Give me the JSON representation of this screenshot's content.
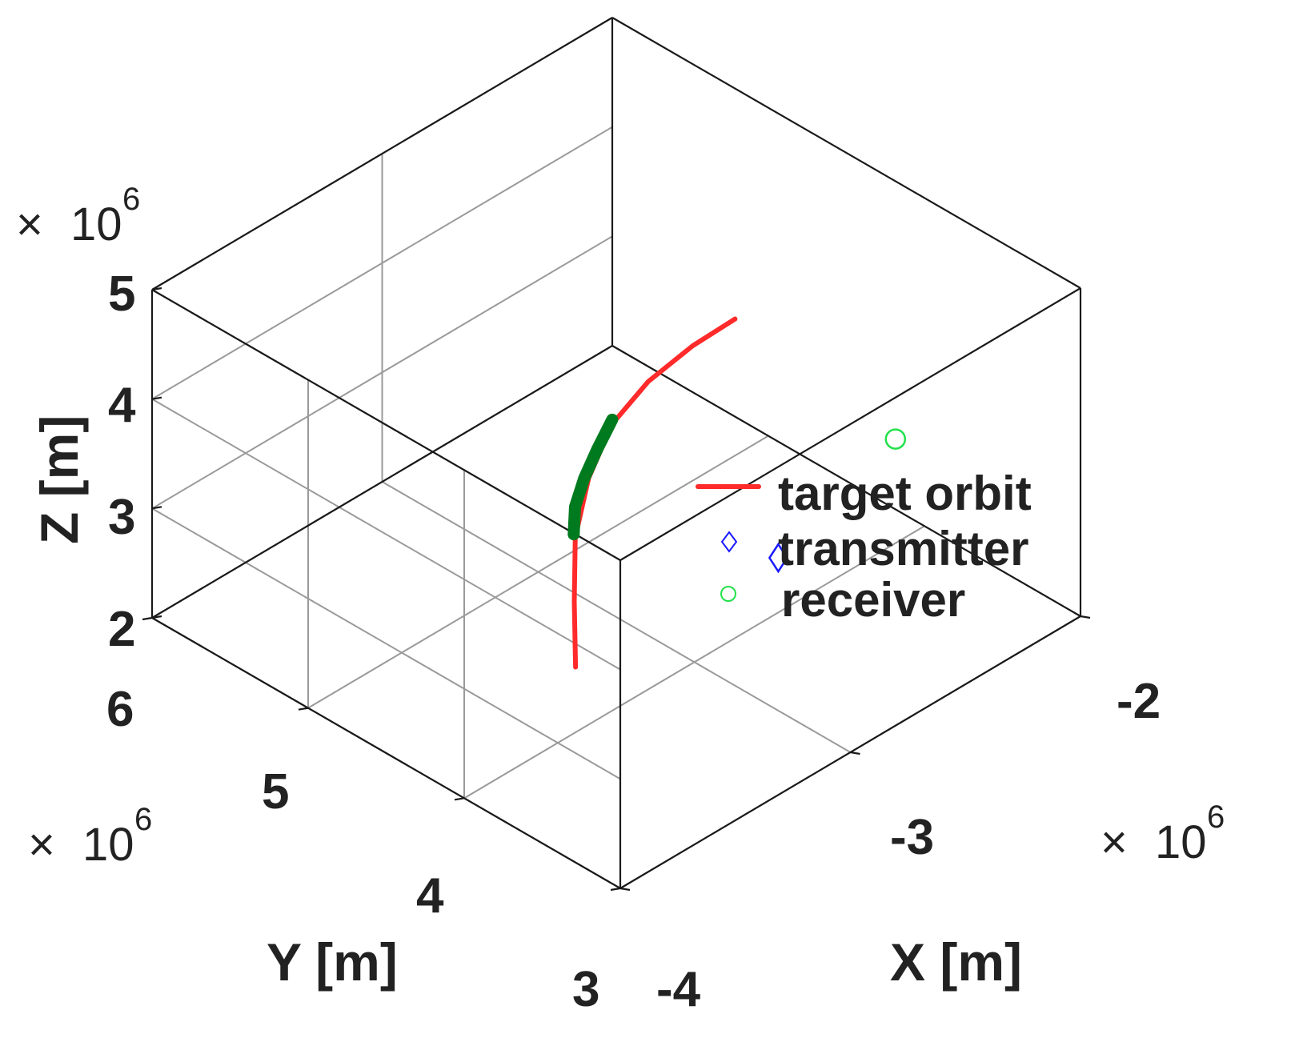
{
  "chart_data": {
    "type": "line",
    "projection": "3d",
    "xlabel": "X [m]",
    "ylabel": "Y [m]",
    "zlabel": "Z [m]",
    "x_multiplier": "× 10^6",
    "y_multiplier": "× 10^6",
    "z_multiplier": "× 10^6",
    "xlim": [
      -4,
      -2
    ],
    "ylim": [
      3,
      6
    ],
    "zlim": [
      2,
      5
    ],
    "xticks": [
      "-4",
      "-3",
      "-2"
    ],
    "yticks": [
      "3",
      "4",
      "5",
      "6"
    ],
    "zticks": [
      "2",
      "3",
      "4",
      "5"
    ],
    "grid": true,
    "legend_position": "center-right",
    "series": [
      {
        "name": "target orbit",
        "kind": "line",
        "color": "#ff2a2a",
        "points": [
          [
            -2.45,
            4.55,
            4.0
          ],
          [
            -2.6,
            4.6,
            3.9
          ],
          [
            -2.78,
            4.62,
            3.78
          ],
          [
            -2.95,
            4.6,
            3.62
          ],
          [
            -3.12,
            4.5,
            3.42
          ],
          [
            -3.28,
            4.35,
            3.2
          ],
          [
            -3.42,
            4.15,
            2.95
          ],
          [
            -3.55,
            3.95,
            2.68
          ]
        ]
      },
      {
        "name": "",
        "kind": "line-thick",
        "color": "#007a1e",
        "points": [
          [
            -2.95,
            4.6,
            3.66
          ],
          [
            -3.05,
            4.55,
            3.55
          ],
          [
            -3.14,
            4.5,
            3.44
          ],
          [
            -3.22,
            4.44,
            3.33
          ],
          [
            -3.28,
            4.36,
            3.22
          ]
        ]
      },
      {
        "name": "transmitter",
        "kind": "marker",
        "marker": "diamond",
        "color": "#1a1aff",
        "points": [
          [
            -2.92,
            3.58,
            3.2
          ]
        ]
      },
      {
        "name": "receiver",
        "kind": "marker",
        "marker": "circle",
        "color": "#22e04a",
        "points": [
          [
            -2.56,
            3.36,
            4.02
          ]
        ]
      }
    ]
  }
}
